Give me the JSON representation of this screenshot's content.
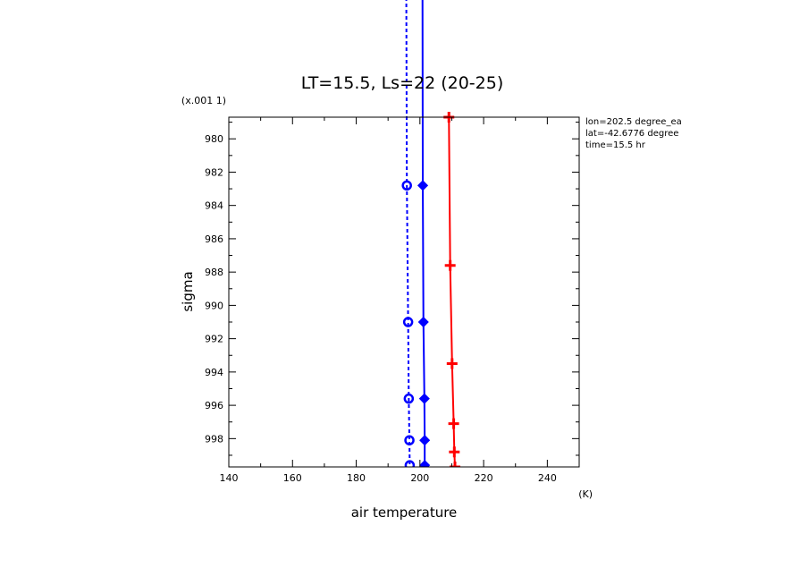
{
  "chart_data": {
    "type": "line",
    "title": "LT=15.5, Ls=22 (20-25)",
    "xlabel": "air temperature",
    "ylabel": "sigma",
    "x_unit": "(K)",
    "y_unit": "(x.001 1)",
    "xlim": [
      140,
      250
    ],
    "ylim": [
      999.7,
      978.7
    ],
    "x_ticks": [
      "140",
      "160",
      "180",
      "200",
      "220",
      "240"
    ],
    "y_ticks": [
      "980",
      "982",
      "984",
      "986",
      "988",
      "990",
      "992",
      "994",
      "996",
      "998"
    ],
    "grid": false,
    "annotations": [
      "lon=202.5 degree_ea",
      "lat=-42.6776 degree",
      "time=15.5 hr"
    ],
    "series": [
      {
        "color": "#0000ff",
        "style": "dashed",
        "marker": "circle",
        "points": [
          [
            195.7,
            970
          ],
          [
            195.9,
            982.8
          ],
          [
            196.3,
            991.0
          ],
          [
            196.5,
            995.6
          ],
          [
            196.7,
            998.1
          ],
          [
            196.8,
            999.6
          ]
        ]
      },
      {
        "color": "#0000ff",
        "style": "solid",
        "marker": "diamond",
        "points": [
          [
            200.8,
            970
          ],
          [
            200.9,
            982.8
          ],
          [
            201.1,
            991.0
          ],
          [
            201.4,
            995.6
          ],
          [
            201.5,
            998.1
          ],
          [
            201.5,
            999.6
          ]
        ]
      },
      {
        "color": "#ff0000",
        "style": "solid",
        "marker": "plus",
        "points": [
          [
            209.1,
            978.7
          ],
          [
            209.5,
            987.6
          ],
          [
            210.1,
            993.5
          ],
          [
            210.6,
            997.1
          ],
          [
            210.8,
            998.8
          ],
          [
            211.0,
            999.7
          ]
        ]
      }
    ]
  }
}
